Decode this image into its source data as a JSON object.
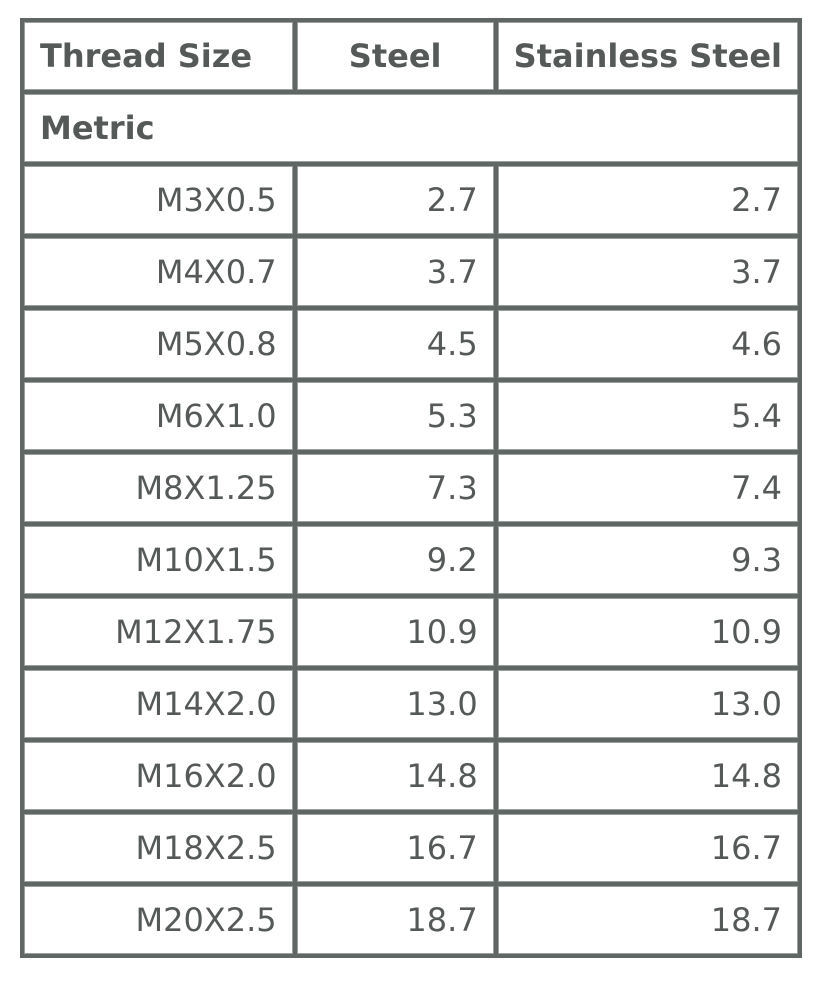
{
  "table": {
    "header": [
      "Thread Size",
      "Steel",
      "Stainless Steel"
    ],
    "section": "Metric",
    "rows": [
      [
        "M3X0.5",
        "2.7",
        "2.7"
      ],
      [
        "M4X0.7",
        "3.7",
        "3.7"
      ],
      [
        "M5X0.8",
        "4.5",
        "4.6"
      ],
      [
        "M6X1.0",
        "5.3",
        "5.4"
      ],
      [
        "M8X1.25",
        "7.3",
        "7.4"
      ],
      [
        "M10X1.5",
        "9.2",
        "9.3"
      ],
      [
        "M12X1.75",
        "10.9",
        "10.9"
      ],
      [
        "M14X2.0",
        "13.0",
        "13.0"
      ],
      [
        "M16X2.0",
        "14.8",
        "14.8"
      ],
      [
        "M18X2.5",
        "16.7",
        "16.7"
      ],
      [
        "M20X2.5",
        "18.7",
        "18.7"
      ]
    ]
  }
}
